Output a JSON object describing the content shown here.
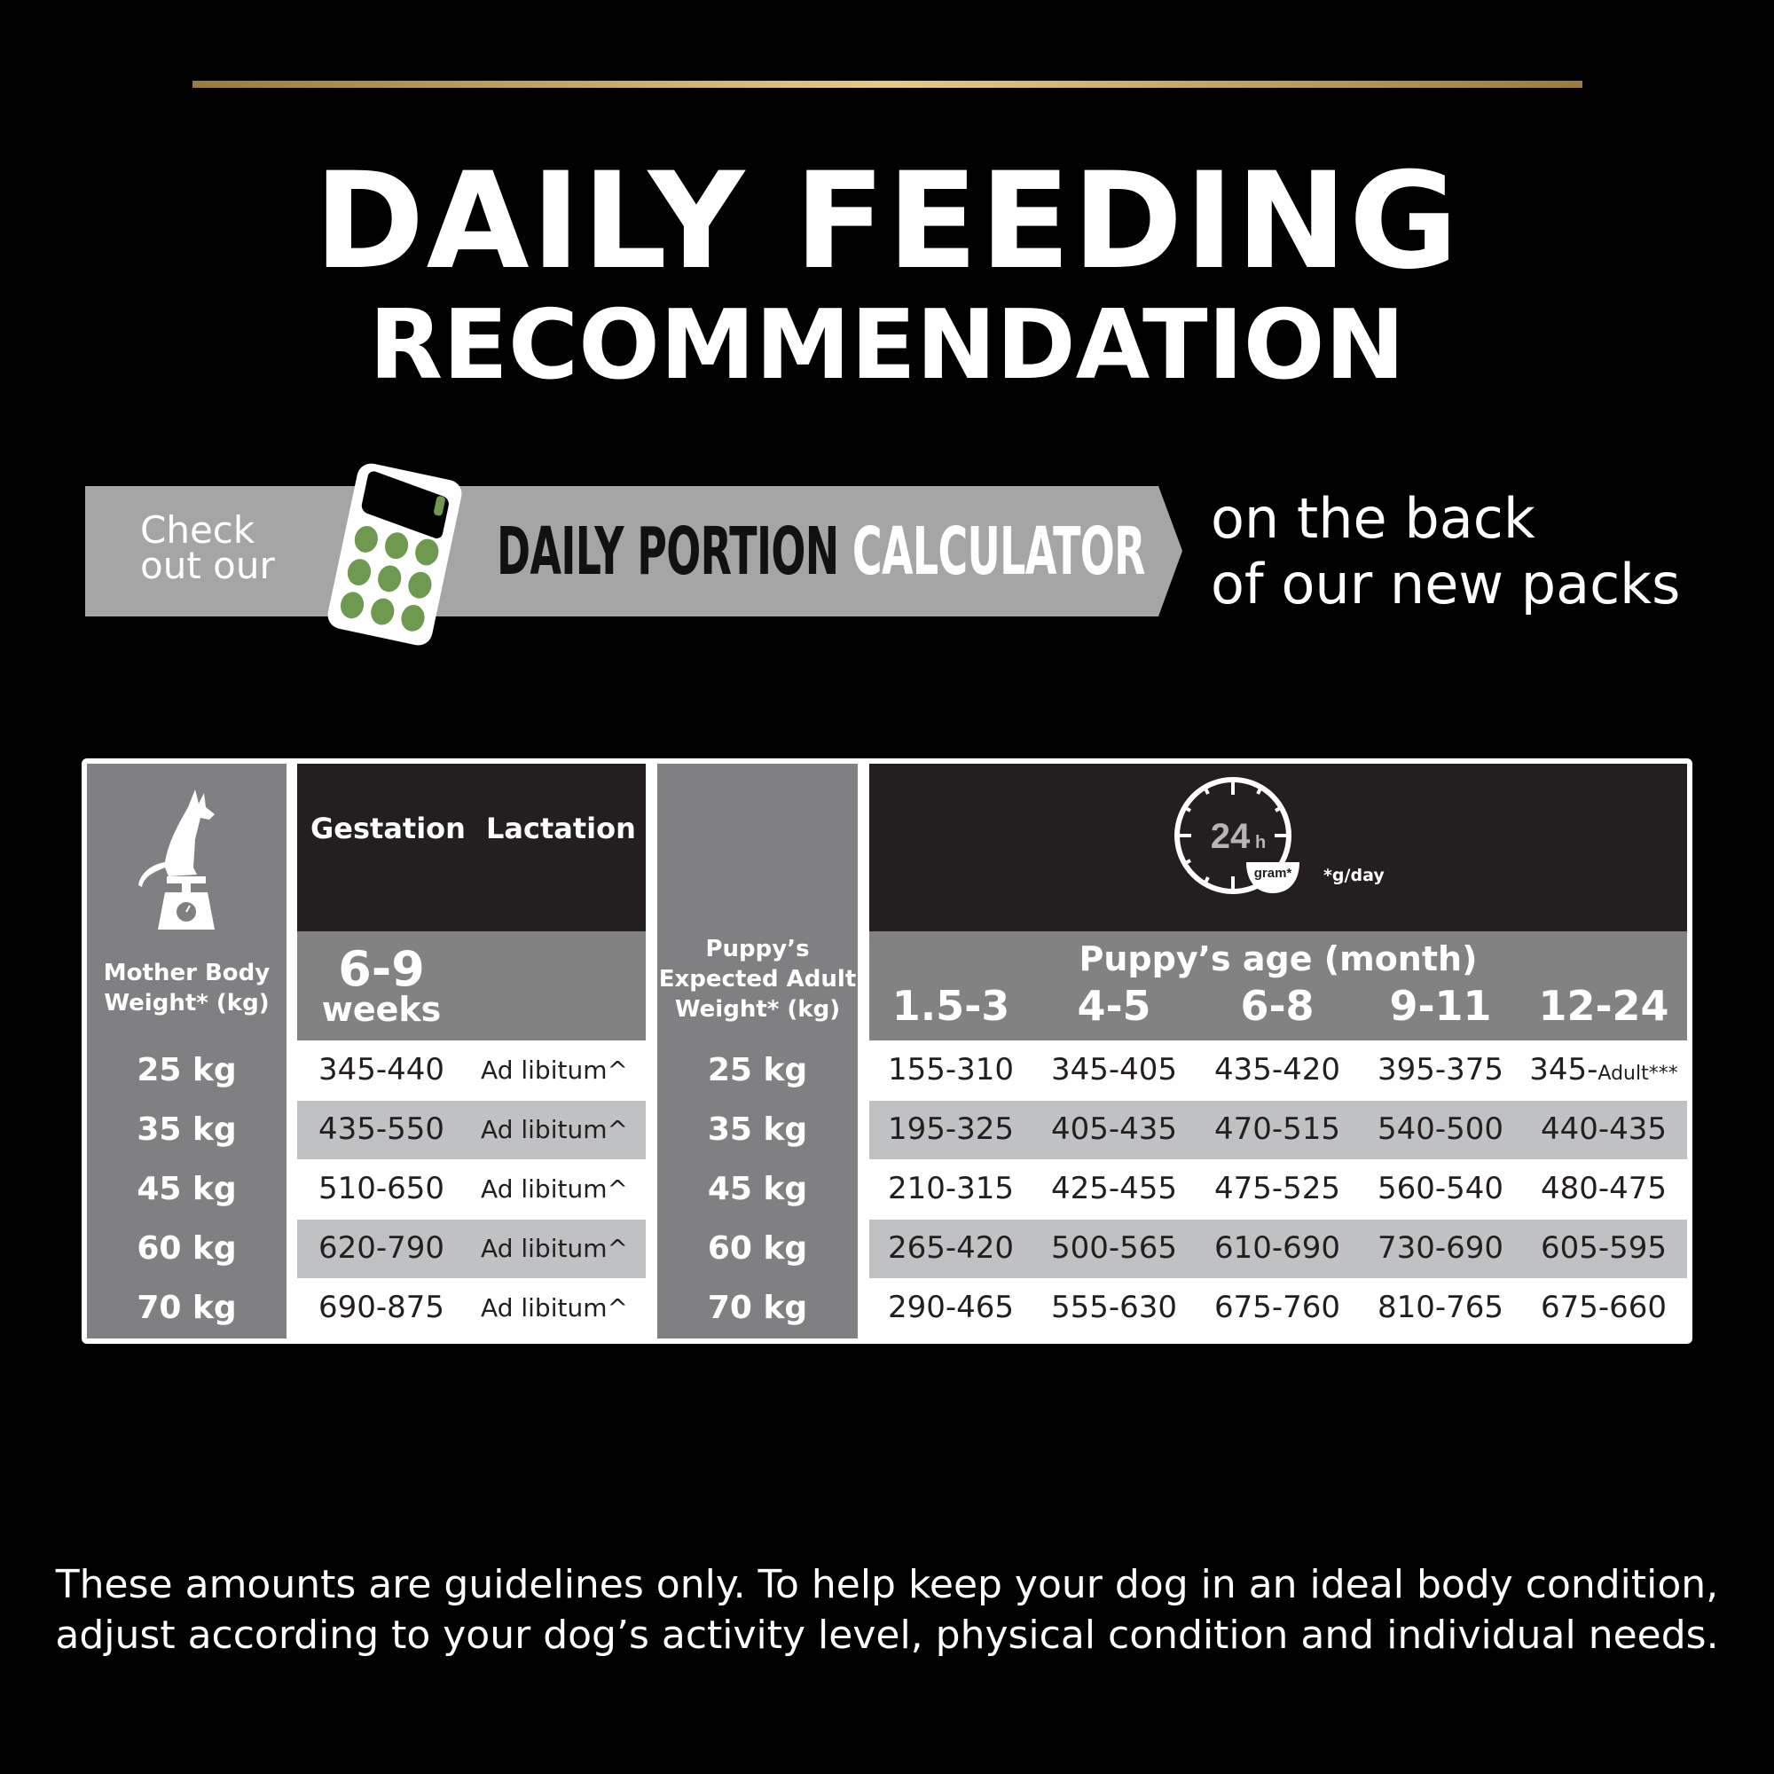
{
  "header": {
    "title_line1": "DAILY FEEDING",
    "title_line2": "RECOMMENDATION"
  },
  "banner": {
    "check_line1": "Check",
    "check_line2": "out our",
    "calculator_part1": "DAILY PORTION",
    "calculator_part2": "CALCULATOR",
    "side_line1": "on the back",
    "side_line2": "of our new packs",
    "icon": "calculator-icon",
    "colors": {
      "banner": "#a5a5a5",
      "calculator_buttons": "#6e9a4f",
      "gold_rule": "#d9b775"
    }
  },
  "table": {
    "mother_header": "Mother Body Weight* (kg)",
    "gestation_header": "Gestation",
    "lactation_header": "Lactation",
    "gestation_period_value": "6-9",
    "gestation_period_unit": "weeks",
    "puppy_weight_header": "Puppy’s Expected Adult Weight* (kg)",
    "clock_text": "24",
    "clock_unit": "h",
    "bowl_text": "gram*",
    "unit_note": "*g/day",
    "age_header": "Puppy’s age (month)",
    "age_columns": [
      "1.5-3",
      "4-5",
      "6-8",
      "9-11",
      "12-24"
    ],
    "rows": [
      {
        "mother": "25 kg",
        "gestation": "345-440",
        "lactation": "Ad libitum^",
        "puppy": "25 kg",
        "ages": [
          "155-310",
          "345-405",
          "435-420",
          "395-375",
          "345-"
        ],
        "last_suffix": "Adult***"
      },
      {
        "mother": "35 kg",
        "gestation": "435-550",
        "lactation": "Ad libitum^",
        "puppy": "35 kg",
        "ages": [
          "195-325",
          "405-435",
          "470-515",
          "540-500",
          "440-435"
        ]
      },
      {
        "mother": "45 kg",
        "gestation": "510-650",
        "lactation": "Ad libitum^",
        "puppy": "45 kg",
        "ages": [
          "210-315",
          "425-455",
          "475-525",
          "560-540",
          "480-475"
        ]
      },
      {
        "mother": "60 kg",
        "gestation": "620-790",
        "lactation": "Ad libitum^",
        "puppy": "60 kg",
        "ages": [
          "265-420",
          "500-565",
          "610-690",
          "730-690",
          "605-595"
        ]
      },
      {
        "mother": "70 kg",
        "gestation": "690-875",
        "lactation": "Ad libitum^",
        "puppy": "70 kg",
        "ages": [
          "290-465",
          "555-630",
          "675-760",
          "810-765",
          "675-660"
        ]
      }
    ]
  },
  "footer": {
    "line1": "These amounts are guidelines only. To help keep your dog in an ideal body condition,",
    "line2": "adjust according to your dog’s activity level, physical condition and individual needs."
  }
}
